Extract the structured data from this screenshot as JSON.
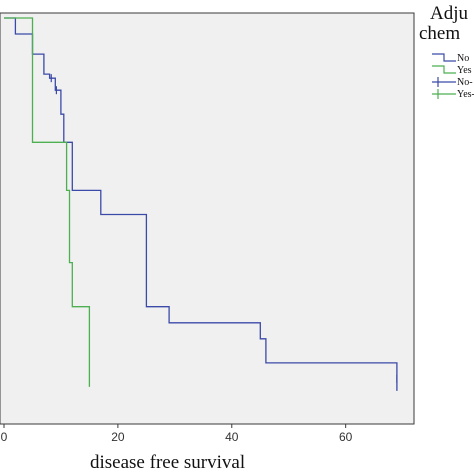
{
  "chart_data": {
    "type": "line",
    "step": true,
    "xlabel": "disease free survival",
    "ylabel": "",
    "title": "",
    "xlim": [
      0,
      72
    ],
    "ylim": [
      0,
      1
    ],
    "xticks": [
      0,
      20,
      40,
      60
    ],
    "xtick_labels": [
      "0",
      "20",
      "40",
      "60"
    ],
    "grid": false,
    "legend": {
      "placement": "right",
      "title_lines": [
        "Adju",
        "chem"
      ],
      "entries": [
        {
          "label": "No",
          "marker": "step",
          "color": "#3b4aa8"
        },
        {
          "label": "Yes",
          "marker": "step",
          "color": "#4caf50"
        },
        {
          "label": "No-",
          "marker": "cross",
          "color": "#3b4aa8"
        },
        {
          "label": "Yes-",
          "marker": "cross",
          "color": "#4caf50"
        }
      ]
    },
    "series": [
      {
        "color": "#3b4aa8",
        "points": [
          [
            0,
            1.0
          ],
          [
            2,
            1.0
          ],
          [
            2,
            0.96
          ],
          [
            5,
            0.96
          ],
          [
            5,
            0.91
          ],
          [
            7,
            0.91
          ],
          [
            7,
            0.86
          ],
          [
            8,
            0.86
          ],
          [
            8,
            0.85
          ],
          [
            9,
            0.85
          ],
          [
            9,
            0.82
          ],
          [
            10,
            0.82
          ],
          [
            10,
            0.76
          ],
          [
            10.5,
            0.76
          ],
          [
            10.5,
            0.69
          ],
          [
            12,
            0.69
          ],
          [
            12,
            0.57
          ],
          [
            17,
            0.57
          ],
          [
            17,
            0.51
          ],
          [
            25,
            0.51
          ],
          [
            25,
            0.28
          ],
          [
            29,
            0.28
          ],
          [
            29,
            0.24
          ],
          [
            45,
            0.24
          ],
          [
            45,
            0.2
          ],
          [
            46,
            0.2
          ],
          [
            46,
            0.14
          ],
          [
            69,
            0.14
          ],
          [
            69,
            0.07
          ]
        ],
        "censor_points": [
          [
            8.3,
            0.85
          ],
          [
            9.2,
            0.82
          ],
          [
            69,
            0.1
          ]
        ]
      },
      {
        "color": "#4caf50",
        "points": [
          [
            0,
            1.0
          ],
          [
            5,
            1.0
          ],
          [
            5,
            0.69
          ],
          [
            11,
            0.69
          ],
          [
            11,
            0.57
          ],
          [
            11.5,
            0.57
          ],
          [
            11.5,
            0.39
          ],
          [
            12,
            0.39
          ],
          [
            12,
            0.28
          ],
          [
            15,
            0.28
          ],
          [
            15,
            0.08
          ]
        ],
        "censor_points": []
      }
    ]
  }
}
